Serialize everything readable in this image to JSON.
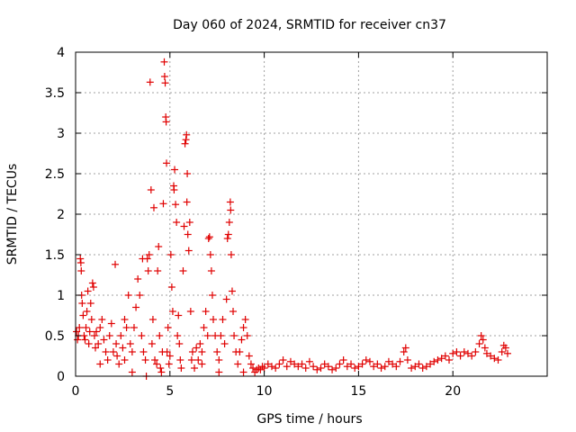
{
  "chart_data": {
    "type": "scatter",
    "title": "Day 060 of 2024, SRMTID for receiver cn37",
    "xlabel": "GPS time / hours",
    "ylabel": "SRMTID / TECUs",
    "xlim": [
      0,
      25
    ],
    "ylim": [
      0,
      4
    ],
    "xticks": [
      0,
      5,
      10,
      15,
      20
    ],
    "yticks": [
      0,
      0.5,
      1,
      1.5,
      2,
      2.5,
      3,
      3.5,
      4
    ],
    "xtick_labels": [
      "0",
      "5",
      "10",
      "15",
      "20"
    ],
    "ytick_labels": [
      "0",
      "0.5",
      "1",
      "1.5",
      "2",
      "2.5",
      "3",
      "3.5",
      "4"
    ],
    "grid": true,
    "marker": "+",
    "series": [
      {
        "name": "SRMTID",
        "color": "#e00000",
        "points": [
          [
            0.05,
            0.55
          ],
          [
            0.1,
            0.45
          ],
          [
            0.15,
            0.5
          ],
          [
            0.2,
            0.6
          ],
          [
            0.25,
            1.45
          ],
          [
            0.28,
            1.4
          ],
          [
            0.3,
            1.3
          ],
          [
            0.32,
            1.0
          ],
          [
            0.35,
            0.9
          ],
          [
            0.4,
            0.75
          ],
          [
            0.45,
            0.5
          ],
          [
            0.5,
            0.45
          ],
          [
            0.55,
            0.6
          ],
          [
            0.6,
            0.8
          ],
          [
            0.65,
            1.05
          ],
          [
            0.7,
            0.4
          ],
          [
            0.75,
            0.55
          ],
          [
            0.8,
            0.9
          ],
          [
            0.85,
            0.7
          ],
          [
            0.9,
            1.15
          ],
          [
            0.95,
            1.1
          ],
          [
            1.0,
            0.5
          ],
          [
            1.05,
            0.35
          ],
          [
            1.1,
            0.55
          ],
          [
            1.2,
            0.4
          ],
          [
            1.3,
            0.6
          ],
          [
            1.4,
            0.7
          ],
          [
            1.5,
            0.45
          ],
          [
            1.6,
            0.3
          ],
          [
            1.7,
            0.2
          ],
          [
            1.8,
            0.5
          ],
          [
            1.9,
            0.65
          ],
          [
            2.0,
            0.3
          ],
          [
            2.1,
            1.38
          ],
          [
            2.15,
            0.4
          ],
          [
            2.2,
            0.25
          ],
          [
            2.3,
            0.15
          ],
          [
            2.4,
            0.5
          ],
          [
            2.5,
            0.35
          ],
          [
            2.6,
            0.2
          ],
          [
            2.7,
            0.6
          ],
          [
            2.8,
            1.0
          ],
          [
            2.9,
            0.4
          ],
          [
            3.0,
            0.3
          ],
          [
            3.1,
            0.6
          ],
          [
            3.2,
            0.85
          ],
          [
            3.3,
            1.2
          ],
          [
            3.4,
            1.0
          ],
          [
            3.5,
            0.5
          ],
          [
            3.55,
            1.45
          ],
          [
            3.6,
            0.3
          ],
          [
            3.7,
            0.2
          ],
          [
            3.75,
            0.0
          ],
          [
            3.8,
            1.45
          ],
          [
            3.85,
            1.3
          ],
          [
            3.9,
            1.5
          ],
          [
            3.95,
            3.63
          ],
          [
            4.0,
            2.3
          ],
          [
            4.05,
            0.4
          ],
          [
            4.1,
            0.7
          ],
          [
            4.15,
            2.08
          ],
          [
            4.2,
            0.2
          ],
          [
            4.3,
            0.15
          ],
          [
            4.35,
            1.3
          ],
          [
            4.4,
            1.6
          ],
          [
            4.45,
            0.5
          ],
          [
            4.5,
            0.1
          ],
          [
            4.55,
            0.05
          ],
          [
            4.6,
            0.3
          ],
          [
            4.65,
            2.13
          ],
          [
            4.7,
            3.88
          ],
          [
            4.72,
            3.7
          ],
          [
            4.75,
            3.62
          ],
          [
            4.78,
            3.2
          ],
          [
            4.8,
            3.14
          ],
          [
            4.82,
            2.63
          ],
          [
            4.85,
            0.3
          ],
          [
            4.9,
            0.6
          ],
          [
            4.95,
            0.15
          ],
          [
            5.0,
            0.25
          ],
          [
            5.05,
            1.5
          ],
          [
            5.1,
            1.1
          ],
          [
            5.15,
            0.8
          ],
          [
            5.2,
            2.35
          ],
          [
            5.22,
            2.3
          ],
          [
            5.25,
            2.55
          ],
          [
            5.3,
            2.12
          ],
          [
            5.35,
            1.9
          ],
          [
            5.4,
            0.5
          ],
          [
            5.45,
            0.75
          ],
          [
            5.5,
            0.4
          ],
          [
            5.55,
            0.2
          ],
          [
            5.6,
            0.1
          ],
          [
            5.7,
            1.3
          ],
          [
            5.75,
            1.85
          ],
          [
            5.8,
            2.87
          ],
          [
            5.85,
            2.92
          ],
          [
            5.88,
            2.98
          ],
          [
            5.9,
            2.15
          ],
          [
            5.92,
            2.5
          ],
          [
            5.95,
            1.75
          ],
          [
            6.0,
            1.55
          ],
          [
            6.05,
            1.9
          ],
          [
            6.1,
            0.8
          ],
          [
            6.15,
            0.2
          ],
          [
            6.2,
            0.3
          ],
          [
            6.3,
            0.1
          ],
          [
            6.4,
            0.35
          ],
          [
            6.5,
            0.2
          ],
          [
            6.6,
            0.4
          ],
          [
            6.7,
            0.3
          ],
          [
            6.8,
            0.6
          ],
          [
            6.9,
            0.8
          ],
          [
            7.0,
            0.5
          ],
          [
            7.05,
            1.7
          ],
          [
            7.1,
            1.72
          ],
          [
            7.15,
            1.5
          ],
          [
            7.2,
            1.3
          ],
          [
            7.25,
            1.0
          ],
          [
            7.3,
            0.7
          ],
          [
            7.4,
            0.5
          ],
          [
            7.5,
            0.3
          ],
          [
            7.6,
            0.2
          ],
          [
            7.7,
            0.5
          ],
          [
            7.8,
            0.7
          ],
          [
            7.9,
            0.4
          ],
          [
            8.0,
            0.95
          ],
          [
            8.05,
            1.7
          ],
          [
            8.1,
            1.75
          ],
          [
            8.15,
            1.9
          ],
          [
            8.2,
            2.15
          ],
          [
            8.22,
            2.05
          ],
          [
            8.25,
            1.5
          ],
          [
            8.3,
            1.05
          ],
          [
            8.35,
            0.8
          ],
          [
            8.4,
            0.5
          ],
          [
            8.5,
            0.3
          ],
          [
            8.6,
            0.15
          ],
          [
            8.7,
            0.3
          ],
          [
            8.8,
            0.45
          ],
          [
            8.9,
            0.6
          ],
          [
            9.0,
            0.7
          ],
          [
            9.1,
            0.5
          ],
          [
            9.2,
            0.25
          ],
          [
            9.3,
            0.15
          ],
          [
            9.4,
            0.1
          ],
          [
            9.5,
            0.05
          ],
          [
            9.6,
            0.08
          ],
          [
            9.7,
            0.1
          ],
          [
            9.8,
            0.08
          ],
          [
            9.9,
            0.12
          ],
          [
            10.0,
            0.1
          ],
          [
            10.2,
            0.15
          ],
          [
            10.4,
            0.12
          ],
          [
            10.6,
            0.1
          ],
          [
            10.8,
            0.15
          ],
          [
            11.0,
            0.2
          ],
          [
            11.2,
            0.12
          ],
          [
            11.4,
            0.18
          ],
          [
            11.6,
            0.15
          ],
          [
            11.8,
            0.12
          ],
          [
            12.0,
            0.15
          ],
          [
            12.2,
            0.1
          ],
          [
            12.4,
            0.18
          ],
          [
            12.6,
            0.12
          ],
          [
            12.8,
            0.08
          ],
          [
            13.0,
            0.1
          ],
          [
            13.2,
            0.15
          ],
          [
            13.4,
            0.12
          ],
          [
            13.6,
            0.08
          ],
          [
            13.8,
            0.1
          ],
          [
            14.0,
            0.15
          ],
          [
            14.2,
            0.2
          ],
          [
            14.4,
            0.12
          ],
          [
            14.6,
            0.15
          ],
          [
            14.8,
            0.1
          ],
          [
            15.0,
            0.12
          ],
          [
            15.2,
            0.15
          ],
          [
            15.4,
            0.2
          ],
          [
            15.6,
            0.18
          ],
          [
            15.8,
            0.12
          ],
          [
            16.0,
            0.15
          ],
          [
            16.2,
            0.1
          ],
          [
            16.4,
            0.12
          ],
          [
            16.6,
            0.18
          ],
          [
            16.8,
            0.15
          ],
          [
            17.0,
            0.12
          ],
          [
            17.2,
            0.18
          ],
          [
            17.4,
            0.3
          ],
          [
            17.5,
            0.35
          ],
          [
            17.6,
            0.2
          ],
          [
            17.8,
            0.1
          ],
          [
            18.0,
            0.12
          ],
          [
            18.2,
            0.15
          ],
          [
            18.4,
            0.1
          ],
          [
            18.6,
            0.12
          ],
          [
            18.8,
            0.15
          ],
          [
            19.0,
            0.18
          ],
          [
            19.2,
            0.2
          ],
          [
            19.4,
            0.22
          ],
          [
            19.6,
            0.25
          ],
          [
            19.8,
            0.2
          ],
          [
            20.0,
            0.28
          ],
          [
            20.2,
            0.3
          ],
          [
            20.4,
            0.25
          ],
          [
            20.6,
            0.3
          ],
          [
            20.8,
            0.28
          ],
          [
            21.0,
            0.25
          ],
          [
            21.2,
            0.3
          ],
          [
            21.4,
            0.4
          ],
          [
            21.5,
            0.5
          ],
          [
            21.6,
            0.45
          ],
          [
            21.7,
            0.35
          ],
          [
            21.8,
            0.28
          ],
          [
            22.0,
            0.25
          ],
          [
            22.2,
            0.22
          ],
          [
            22.4,
            0.2
          ],
          [
            22.6,
            0.3
          ],
          [
            22.7,
            0.38
          ],
          [
            22.8,
            0.35
          ],
          [
            22.9,
            0.28
          ],
          [
            3.0,
            0.05
          ],
          [
            2.6,
            0.7
          ],
          [
            1.3,
            0.15
          ],
          [
            6.7,
            0.15
          ],
          [
            7.6,
            0.05
          ],
          [
            8.9,
            0.05
          ]
        ]
      }
    ]
  }
}
